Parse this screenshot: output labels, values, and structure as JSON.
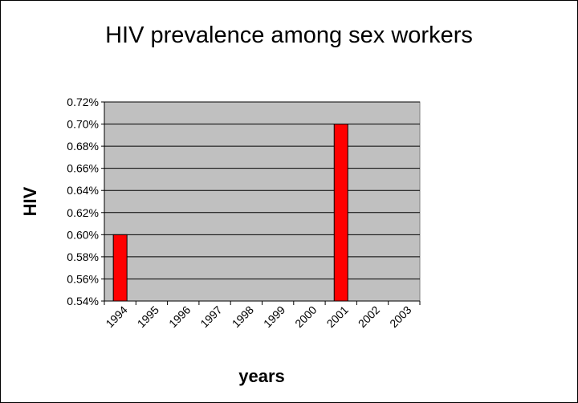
{
  "chart_data": {
    "type": "bar",
    "title": "HIV prevalence among sex workers",
    "xlabel": "years",
    "ylabel": "HIV",
    "categories": [
      "1994",
      "1995",
      "1996",
      "1997",
      "1998",
      "1999",
      "2000",
      "2001",
      "2002",
      "2003"
    ],
    "series": [
      {
        "values": [
          0.6,
          null,
          null,
          null,
          null,
          null,
          null,
          0.7,
          null,
          null
        ]
      }
    ],
    "ylim": [
      0.54,
      0.72
    ],
    "ytick_labels": [
      "0.72%",
      "0.70%",
      "0.68%",
      "0.66%",
      "0.64%",
      "0.62%",
      "0.60%",
      "0.58%",
      "0.56%",
      "0.54%"
    ],
    "grid": true,
    "colors": {
      "plot_background": "#c0c0c0",
      "bar_fill": "#ff0000",
      "gridline": "#000000"
    }
  }
}
